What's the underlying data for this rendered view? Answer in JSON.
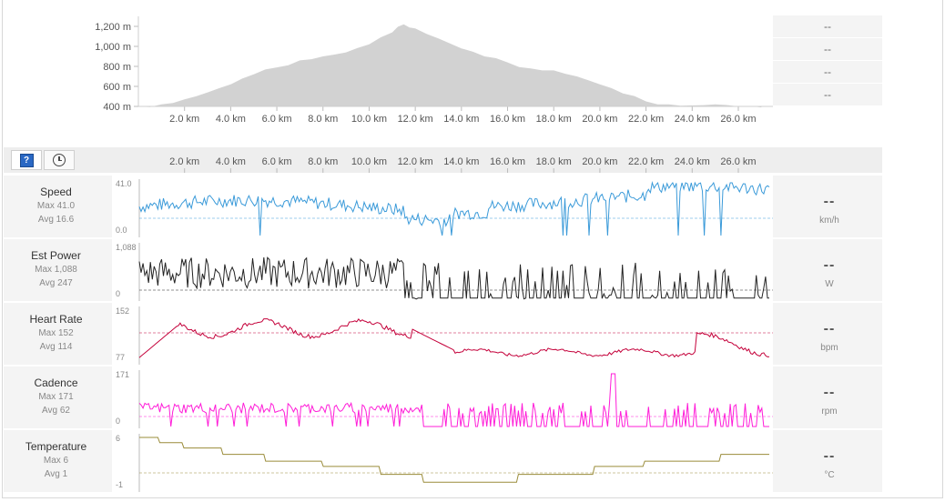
{
  "elevation": {
    "y_ticks": [
      "1,200 m",
      "1,000 m",
      "800 m",
      "600 m",
      "400 m"
    ],
    "x_ticks": [
      "2.0 km",
      "4.0 km",
      "6.0 km",
      "8.0 km",
      "10.0 km",
      "12.0 km",
      "14.0 km",
      "16.0 km",
      "18.0 km",
      "20.0 km",
      "22.0 km",
      "24.0 km",
      "26.0 km"
    ],
    "side_values": [
      "--",
      "--",
      "--",
      "--"
    ]
  },
  "toolbar": {
    "help_glyph": "?"
  },
  "metrics": [
    {
      "name": "Speed",
      "max": "Max 41.0",
      "avg": "Avg 16.6",
      "top": "41.0",
      "bottom": "0.0",
      "value": "--",
      "unit": "km/h",
      "color": "#3a9ad9"
    },
    {
      "name": "Est Power",
      "max": "Max 1,088",
      "avg": "Avg 247",
      "top": "1,088",
      "bottom": "0",
      "value": "--",
      "unit": "W",
      "color": "#222222"
    },
    {
      "name": "Heart Rate",
      "max": "Max 152",
      "avg": "Avg 114",
      "top": "152",
      "bottom": "77",
      "value": "--",
      "unit": "bpm",
      "color": "#c4003a"
    },
    {
      "name": "Cadence",
      "max": "Max 171",
      "avg": "Avg 62",
      "top": "171",
      "bottom": "0",
      "value": "--",
      "unit": "rpm",
      "color": "#ff1cd8"
    },
    {
      "name": "Temperature",
      "max": "Max 6",
      "avg": "Avg 1",
      "top": "6",
      "bottom": "-1",
      "value": "--",
      "unit": "°C",
      "color": "#9a8c3a"
    }
  ],
  "chart_data": {
    "type": "area",
    "x": [
      0,
      1,
      2,
      3,
      4,
      5,
      6,
      7,
      8,
      9,
      10,
      11,
      11.5,
      12,
      13,
      14,
      15,
      16,
      17,
      18,
      19,
      20,
      21,
      22,
      23,
      24,
      25,
      26,
      27
    ],
    "y": [
      400,
      420,
      470,
      540,
      620,
      720,
      790,
      860,
      900,
      940,
      1020,
      1140,
      1220,
      1180,
      1080,
      980,
      900,
      840,
      780,
      760,
      700,
      620,
      530,
      450,
      420,
      410,
      420,
      400,
      390
    ],
    "xlim": [
      0,
      27.5
    ],
    "ylim": [
      400,
      1300
    ]
  }
}
